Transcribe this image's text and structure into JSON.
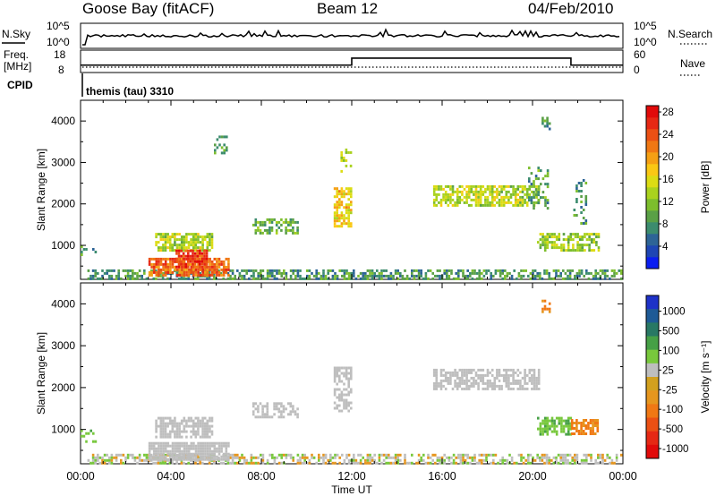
{
  "header": {
    "station": "Goose Bay (fitACF)",
    "beam": "Beam 12",
    "date": "04/Feb/2010"
  },
  "noise_panel": {
    "left_label": "N.Sky",
    "right_label": "N.Search",
    "left_ticks": [
      "10^5",
      "10^0"
    ],
    "right_ticks": [
      "10^5",
      "10^0"
    ]
  },
  "freq_panel": {
    "left_label_line1": "Freq.",
    "left_label_line2": "[MHz]",
    "right_label": "Nave",
    "left_ticks": [
      "18",
      "8"
    ],
    "right_ticks": [
      "60",
      "0"
    ]
  },
  "cpid_panel": {
    "label": "CPID",
    "program": "themis (tau) 3310"
  },
  "chart_data": [
    {
      "type": "heatmap",
      "title": "",
      "xlabel": "",
      "ylabel": "Slant Range [km]",
      "x_unit": "hours UT",
      "xlim": [
        0,
        24
      ],
      "ylim": [
        180,
        4500
      ],
      "y_ticks": [
        1000,
        2000,
        3000,
        4000
      ],
      "colorbar": {
        "label": "Power [dB]",
        "tick_labels": [
          "4",
          "8",
          "12",
          "16",
          "20",
          "24",
          "28"
        ],
        "colors": [
          "#0a1ef0",
          "#1e46b4",
          "#2d6496",
          "#3c8c6e",
          "#5aa046",
          "#7dbe2d",
          "#aad21e",
          "#dcdc14",
          "#fac814",
          "#f5a014",
          "#f07814",
          "#eb5014",
          "#e62814",
          "#e10a0a"
        ]
      },
      "regions": [
        {
          "t0": 0.3,
          "t1": 23.9,
          "r0": 200,
          "r1": 420,
          "value": 8,
          "density": 0.55
        },
        {
          "t0": 3.0,
          "t1": 6.6,
          "r0": 300,
          "r1": 700,
          "value": 24,
          "density": 0.85
        },
        {
          "t0": 3.3,
          "t1": 5.8,
          "r0": 850,
          "r1": 1300,
          "value": 14,
          "density": 0.7
        },
        {
          "t0": 4.2,
          "t1": 5.6,
          "r0": 450,
          "r1": 900,
          "value": 27,
          "density": 0.8
        },
        {
          "t0": 7.6,
          "t1": 9.6,
          "r0": 1300,
          "r1": 1650,
          "value": 10,
          "density": 0.55
        },
        {
          "t0": 5.9,
          "t1": 6.5,
          "r0": 3200,
          "r1": 3650,
          "value": 9,
          "density": 0.3
        },
        {
          "t0": 11.2,
          "t1": 12.0,
          "r0": 1450,
          "r1": 2400,
          "value": 18,
          "density": 0.65
        },
        {
          "t0": 11.5,
          "t1": 12.0,
          "r0": 2800,
          "r1": 3400,
          "value": 14,
          "density": 0.4
        },
        {
          "t0": 15.6,
          "t1": 20.3,
          "r0": 1950,
          "r1": 2450,
          "value": 14,
          "density": 0.7
        },
        {
          "t0": 19.8,
          "t1": 20.7,
          "r0": 1900,
          "r1": 2900,
          "value": 9,
          "density": 0.35
        },
        {
          "t0": 20.2,
          "t1": 22.9,
          "r0": 900,
          "r1": 1300,
          "value": 13,
          "density": 0.65
        },
        {
          "t0": 20.4,
          "t1": 20.8,
          "r0": 3800,
          "r1": 4100,
          "value": 9,
          "density": 0.35
        },
        {
          "t0": 21.8,
          "t1": 22.4,
          "r0": 1500,
          "r1": 2600,
          "value": 8,
          "density": 0.3
        },
        {
          "t0": 0.0,
          "t1": 0.7,
          "r0": 700,
          "r1": 1000,
          "value": 7,
          "density": 0.3
        }
      ]
    },
    {
      "type": "heatmap",
      "title": "",
      "xlabel": "Time UT",
      "ylabel": "Slant Range [km]",
      "x_unit": "hours UT",
      "xlim": [
        0,
        24
      ],
      "ylim": [
        180,
        4500
      ],
      "x_ticks": [
        "00:00",
        "04:00",
        "08:00",
        "12:00",
        "16:00",
        "20:00",
        "00:00"
      ],
      "y_ticks": [
        1000,
        2000,
        3000,
        4000
      ],
      "colorbar": {
        "label": "Velocity [m s⁻¹]",
        "tick_labels": [
          "1000",
          "500",
          "100",
          "25",
          "-25",
          "-100",
          "-500",
          "-1000"
        ],
        "colors": [
          "#1e32c8",
          "#1e5a96",
          "#287864",
          "#46a046",
          "#78c83c",
          "#bebebe",
          "#d2a01e",
          "#e6961e",
          "#f07814",
          "#eb5014",
          "#e62814",
          "#e10a0a"
        ]
      },
      "regions": [
        {
          "t0": 0.3,
          "t1": 23.9,
          "r0": 200,
          "r1": 420,
          "value": "mixed",
          "density": 0.55
        },
        {
          "t0": 3.0,
          "t1": 6.6,
          "r0": 300,
          "r1": 700,
          "value": "ground",
          "density": 0.85
        },
        {
          "t0": 3.3,
          "t1": 5.8,
          "r0": 850,
          "r1": 1300,
          "value": "ground",
          "density": 0.7
        },
        {
          "t0": 7.6,
          "t1": 9.6,
          "r0": 1300,
          "r1": 1650,
          "value": "ground",
          "density": 0.55
        },
        {
          "t0": 11.2,
          "t1": 12.0,
          "r0": 1450,
          "r1": 2500,
          "value": "ground",
          "density": 0.6
        },
        {
          "t0": 15.6,
          "t1": 20.3,
          "r0": 1950,
          "r1": 2450,
          "value": "ground",
          "density": 0.7
        },
        {
          "t0": 20.2,
          "t1": 21.7,
          "r0": 900,
          "r1": 1300,
          "value": "positive",
          "density": 0.65
        },
        {
          "t0": 21.7,
          "t1": 22.9,
          "r0": 900,
          "r1": 1250,
          "value": "negative",
          "density": 0.7
        },
        {
          "t0": 20.4,
          "t1": 20.8,
          "r0": 3800,
          "r1": 4100,
          "value": "negative",
          "density": 0.35
        },
        {
          "t0": 0.0,
          "t1": 0.7,
          "r0": 700,
          "r1": 1000,
          "value": "positive",
          "density": 0.3
        }
      ]
    }
  ],
  "frequency_series": {
    "unit": "MHz",
    "segments": [
      {
        "t0": 0,
        "t1": 12.0,
        "value": 10.5
      },
      {
        "t0": 12.0,
        "t1": 21.7,
        "value": 16.5
      },
      {
        "t0": 21.7,
        "t1": 24,
        "value": 10.5
      }
    ]
  },
  "colors": {
    "axis": "#000000",
    "ground_scatter": "#bebebe"
  }
}
